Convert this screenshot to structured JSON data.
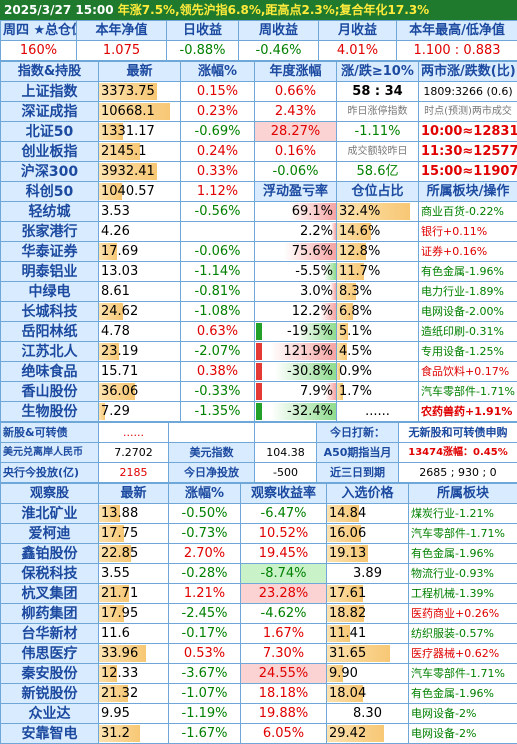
{
  "banner": {
    "date": "2025/3/27",
    "time": "15:00",
    "t1": "年涨7.5%,领先沪指6.8%,距高点2.3%;复合年化17.3%"
  },
  "summary": {
    "headers": [
      "周四 ★总仓位",
      "本年净值",
      "日收益",
      "周收益",
      "月收益",
      "本年最高/低净值"
    ],
    "values": [
      "160%",
      "1.075",
      "-0.88%",
      "-0.46%",
      "4.01%",
      "1.100 : 0.883"
    ]
  },
  "indices_header": [
    "指数&持股",
    "最新",
    "涨幅%",
    "年度涨幅",
    "涨/跌≥10%",
    "两市涨/跌数(比)"
  ],
  "indices": [
    {
      "name": "上证指数",
      "price": "3373.75",
      "chg": "0.15%",
      "ytd": "0.66%",
      "c5": "58 : 34",
      "c6": "1809:3266 (0.6)"
    },
    {
      "name": "深证成指",
      "price": "10668.1",
      "chg": "0.23%",
      "ytd": "2.43%",
      "c5": "昨日涨停指数",
      "c6": "时点(预测)两市成交"
    },
    {
      "name": "北证50",
      "price": "1331.17",
      "chg": "-0.69%",
      "ytd": "28.27%",
      "c5": "-1.11%",
      "c6": "10:00≈12831亿"
    },
    {
      "name": "创业板指",
      "price": "2145.1",
      "chg": "0.24%",
      "ytd": "0.16%",
      "c5": "成交额较昨日",
      "c6": "11:30≈12577亿"
    },
    {
      "name": "沪深300",
      "price": "3932.41",
      "chg": "0.33%",
      "ytd": "-0.06%",
      "c5": "58.6亿",
      "c6": "15:00≈11907亿"
    },
    {
      "name": "科创50",
      "price": "1040.57",
      "chg": "1.12%",
      "ytd": "浮动盈亏率",
      "c5": "仓位占比",
      "c6": "所属板块/操作"
    }
  ],
  "holdings": [
    {
      "name": "轻纺城",
      "price": "3.53",
      "chg": "-0.56%",
      "pnl": "69.1%",
      "pos": "32.4%",
      "sector": "商业百货-0.22%"
    },
    {
      "name": "张家港行",
      "price": "4.26",
      "chg": "",
      "pnl": "2.2%",
      "pos": "14.6%",
      "sector": "银行+0.11%"
    },
    {
      "name": "华泰证券",
      "price": "17.69",
      "chg": "-0.06%",
      "pnl": "75.6%",
      "pos": "12.8%",
      "sector": "证券+0.16%"
    },
    {
      "name": "明泰铝业",
      "price": "13.03",
      "chg": "-1.14%",
      "pnl": "-5.5%",
      "pos": "11.7%",
      "sector": "有色金属-1.96%"
    },
    {
      "name": "中绿电",
      "price": "8.61",
      "chg": "-0.81%",
      "pnl": "3.0%",
      "pos": "8.3%",
      "sector": "电力行业-1.89%"
    },
    {
      "name": "长城科技",
      "price": "24.62",
      "chg": "-1.08%",
      "pnl": "12.2%",
      "pos": "6.8%",
      "sector": "电网设备-2.00%"
    },
    {
      "name": "岳阳林纸",
      "price": "4.78",
      "chg": "0.63%",
      "pnl": "-19.5%",
      "pos": "5.1%",
      "sector": "造纸印刷-0.31%"
    },
    {
      "name": "江苏北人",
      "price": "23.19",
      "chg": "-2.07%",
      "pnl": "121.9%",
      "pos": "4.5%",
      "sector": "专用设备-1.25%"
    },
    {
      "name": "绝味食品",
      "price": "15.71",
      "chg": "0.38%",
      "pnl": "-30.8%",
      "pos": "0.9%",
      "sector": "食品饮料+0.17%"
    },
    {
      "name": "香山股份",
      "price": "36.06",
      "chg": "-0.33%",
      "pnl": "7.9%",
      "pos": "1.7%",
      "sector": "汽车零部件-1.71%"
    },
    {
      "name": "生物股份",
      "price": "7.29",
      "chg": "-1.35%",
      "pnl": "-32.4%",
      "pos": "......",
      "sector": "农药兽药+1.91%"
    }
  ],
  "info": {
    "r1": [
      "新股&可转债",
      "......",
      "",
      "",
      "今日打新：",
      "无新股和可转债申购"
    ],
    "r2": [
      "美元兑离岸人民币",
      "7.2702",
      "美元指数",
      "104.38",
      "A50期指当月",
      "13474涨幅：0.45%"
    ],
    "r3": [
      "央行今投放(亿)",
      "2185",
      "今日净投放",
      "-500",
      "近三日到期",
      "2685 ; 930 ; 0"
    ]
  },
  "watch_header": [
    "观察股",
    "最新",
    "涨幅%",
    "观察收益率",
    "入选价格",
    "所属板块"
  ],
  "watch": [
    {
      "name": "淮北矿业",
      "price": "13.88",
      "chg": "-0.50%",
      "ret": "-6.47%",
      "entry": "14.84",
      "sector": "煤炭行业-1.21%"
    },
    {
      "name": "爱柯迪",
      "price": "17.75",
      "chg": "-0.73%",
      "ret": "10.52%",
      "entry": "16.06",
      "sector": "汽车零部件-1.71%"
    },
    {
      "name": "鑫铂股份",
      "price": "22.85",
      "chg": "2.70%",
      "ret": "19.45%",
      "entry": "19.13",
      "sector": "有色金属-1.96%"
    },
    {
      "name": "保税科技",
      "price": "3.55",
      "chg": "-0.28%",
      "ret": "-8.74%",
      "entry": "3.89",
      "sector": "物流行业-0.93%"
    },
    {
      "name": "杭叉集团",
      "price": "21.71",
      "chg": "1.21%",
      "ret": "23.28%",
      "entry": "17.61",
      "sector": "工程机械-1.39%"
    },
    {
      "name": "柳药集团",
      "price": "17.95",
      "chg": "-2.45%",
      "ret": "-4.62%",
      "entry": "18.82",
      "sector": "医药商业+0.26%"
    },
    {
      "name": "台华新材",
      "price": "11.6",
      "chg": "-0.17%",
      "ret": "1.67%",
      "entry": "11.41",
      "sector": "纺织服装-0.57%"
    },
    {
      "name": "伟思医疗",
      "price": "33.96",
      "chg": "0.53%",
      "ret": "7.30%",
      "entry": "31.65",
      "sector": "医疗器械+0.62%"
    },
    {
      "name": "秦安股份",
      "price": "12.33",
      "chg": "-3.67%",
      "ret": "24.55%",
      "entry": "9.90",
      "sector": "汽车零部件-1.71%"
    },
    {
      "name": "新锐股份",
      "price": "21.32",
      "chg": "-1.07%",
      "ret": "18.18%",
      "entry": "18.04",
      "sector": "有色金属-1.96%"
    },
    {
      "name": "众业达",
      "price": "9.95",
      "chg": "-1.19%",
      "ret": "19.88%",
      "entry": "8.30",
      "sector": "电网设备-2%"
    },
    {
      "name": "安靠智电",
      "price": "31.2",
      "chg": "-1.67%",
      "ret": "6.05%",
      "entry": "29.42",
      "sector": "电网设备-2%"
    }
  ]
}
